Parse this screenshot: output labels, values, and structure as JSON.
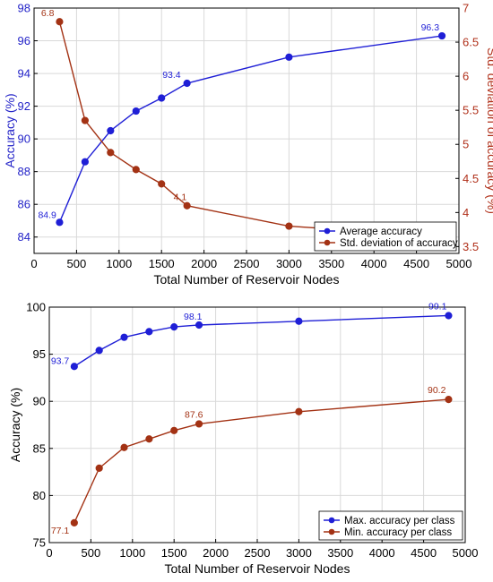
{
  "colors": {
    "blue": "#1f1fd6",
    "red": "#a33214",
    "blue_axis": "#2323c8",
    "red_axis": "#b0301a",
    "grid": "#d9d9d9"
  },
  "chart_data": [
    {
      "type": "line",
      "xlabel": "Total Number of Reservoir Nodes",
      "ylabel": "Accuracy (%)",
      "y2label": "Std. deviation of accuracy (%)",
      "xlim": [
        0,
        5000
      ],
      "ylim": [
        83,
        98
      ],
      "y2lim": [
        3.4,
        7
      ],
      "xticks": [
        "0",
        "500",
        "1000",
        "1500",
        "2000",
        "2500",
        "3000",
        "3500",
        "4000",
        "4500",
        "5000"
      ],
      "yticks": [
        "84",
        "86",
        "88",
        "90",
        "92",
        "94",
        "96",
        "98"
      ],
      "y2ticks": [
        "3.5",
        "4",
        "4.5",
        "5",
        "5.5",
        "6",
        "6.5",
        "7"
      ],
      "grid": true,
      "legend_position": "bottom-right",
      "series": [
        {
          "name": "Average accuracy",
          "axis": "left",
          "x": [
            300,
            600,
            900,
            1200,
            1500,
            1800,
            3000,
            4800
          ],
          "values": [
            84.9,
            88.6,
            90.5,
            91.7,
            92.5,
            93.4,
            95.0,
            96.3
          ],
          "labels": [
            {
              "index": 0,
              "text": "84.9"
            },
            {
              "index": 5,
              "text": "93.4"
            },
            {
              "index": 7,
              "text": "96.3"
            }
          ]
        },
        {
          "name": "Std. deviation of accuracy",
          "axis": "right",
          "x": [
            300,
            600,
            900,
            1200,
            1500,
            1800,
            3000,
            4800
          ],
          "values": [
            6.8,
            5.35,
            4.88,
            4.63,
            4.42,
            4.1,
            3.8,
            3.65
          ],
          "labels": [
            {
              "index": 0,
              "text": "6.8"
            },
            {
              "index": 5,
              "text": "4.1"
            },
            {
              "index": 7,
              "text": "3.6"
            }
          ]
        }
      ]
    },
    {
      "type": "line",
      "xlabel": "Total Number of Reservoir Nodes",
      "ylabel": "Accuracy (%)",
      "xlim": [
        0,
        5000
      ],
      "ylim": [
        75,
        100
      ],
      "xticks": [
        "0",
        "500",
        "1000",
        "1500",
        "2000",
        "2500",
        "3000",
        "3500",
        "4000",
        "4500",
        "5000"
      ],
      "yticks": [
        "75",
        "80",
        "85",
        "90",
        "95",
        "100"
      ],
      "grid": true,
      "legend_position": "bottom-right",
      "series": [
        {
          "name": "Max. accuracy per class",
          "axis": "left",
          "x": [
            300,
            600,
            900,
            1200,
            1500,
            1800,
            3000,
            4800
          ],
          "values": [
            93.7,
            95.4,
            96.8,
            97.4,
            97.9,
            98.1,
            98.5,
            99.1
          ],
          "labels": [
            {
              "index": 0,
              "text": "93.7"
            },
            {
              "index": 5,
              "text": "98.1"
            },
            {
              "index": 7,
              "text": "99.1"
            }
          ]
        },
        {
          "name": "Min. accuracy per class",
          "axis": "left",
          "x": [
            300,
            600,
            900,
            1200,
            1500,
            1800,
            3000,
            4800
          ],
          "values": [
            77.1,
            82.9,
            85.1,
            86.0,
            86.9,
            87.6,
            88.9,
            90.2
          ],
          "labels": [
            {
              "index": 0,
              "text": "77.1"
            },
            {
              "index": 5,
              "text": "87.6"
            },
            {
              "index": 7,
              "text": "90.2"
            }
          ]
        }
      ]
    }
  ]
}
